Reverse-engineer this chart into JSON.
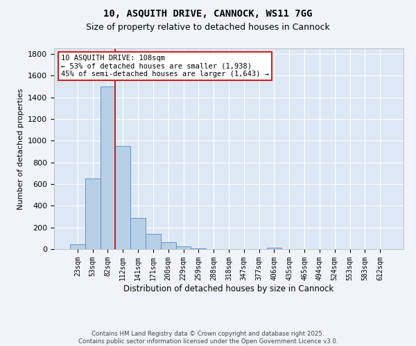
{
  "title1": "10, ASQUITH DRIVE, CANNOCK, WS11 7GG",
  "title2": "Size of property relative to detached houses in Cannock",
  "xlabel": "Distribution of detached houses by size in Cannock",
  "ylabel": "Number of detached properties",
  "bar_labels": [
    "23sqm",
    "53sqm",
    "82sqm",
    "112sqm",
    "141sqm",
    "171sqm",
    "200sqm",
    "229sqm",
    "259sqm",
    "288sqm",
    "318sqm",
    "347sqm",
    "377sqm",
    "406sqm",
    "435sqm",
    "465sqm",
    "494sqm",
    "524sqm",
    "553sqm",
    "583sqm",
    "612sqm"
  ],
  "bar_values": [
    47,
    650,
    1500,
    950,
    290,
    140,
    65,
    25,
    8,
    3,
    2,
    1,
    1,
    12,
    0,
    0,
    0,
    0,
    0,
    0,
    0
  ],
  "bar_color": "#b8cfe8",
  "bar_edge_color": "#5588bb",
  "vline_color": "#cc2222",
  "annotation_text": "10 ASQUITH DRIVE: 108sqm\n← 53% of detached houses are smaller (1,938)\n45% of semi-detached houses are larger (1,643) →",
  "annotation_box_color": "#ffffff",
  "annotation_box_edge_color": "#cc2222",
  "ylim": [
    0,
    1850
  ],
  "yticks": [
    0,
    200,
    400,
    600,
    800,
    1000,
    1200,
    1400,
    1600,
    1800
  ],
  "bg_color": "#dce8f5",
  "grid_color": "#ffffff",
  "fig_bg_color": "#f0f4fa",
  "footer1": "Contains HM Land Registry data © Crown copyright and database right 2025.",
  "footer2": "Contains public sector information licensed under the Open Government Licence v3.0."
}
